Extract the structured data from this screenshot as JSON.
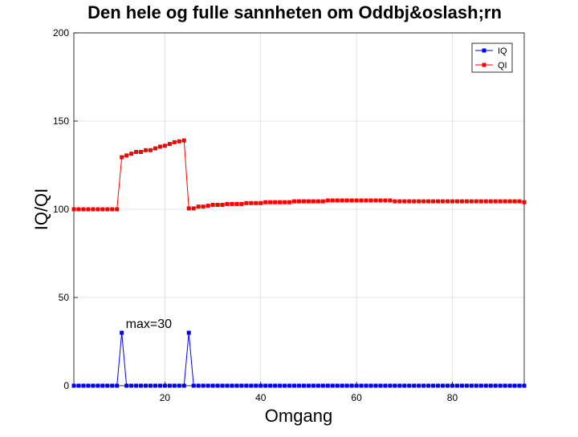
{
  "chart_data": {
    "type": "line",
    "title": "Den hele og fulle sannheten om Oddbj&oslash;rn",
    "xlabel": "Omgang",
    "ylabel": "IQ/QI",
    "xlim": [
      1,
      95
    ],
    "ylim": [
      0,
      200
    ],
    "xticks": [
      20,
      40,
      60,
      80
    ],
    "yticks": [
      0,
      50,
      100,
      150,
      200
    ],
    "grid": true,
    "legend_position": "top-right",
    "annotation": {
      "text": "max=30",
      "x": 12,
      "y": 35
    },
    "series": [
      {
        "name": "IQ",
        "color": "#0000ff",
        "marker": "square",
        "values": [
          0,
          0,
          0,
          0,
          0,
          0,
          0,
          0,
          0,
          0,
          30,
          0,
          0,
          0,
          0,
          0,
          0,
          0,
          0,
          0,
          0,
          0,
          0,
          0,
          30,
          0,
          0,
          0,
          0,
          0,
          0,
          0,
          0,
          0,
          0,
          0,
          0,
          0,
          0,
          0,
          0,
          0,
          0,
          0,
          0,
          0,
          0,
          0,
          0,
          0,
          0,
          0,
          0,
          0,
          0,
          0,
          0,
          0,
          0,
          0,
          0,
          0,
          0,
          0,
          0,
          0,
          0,
          0,
          0,
          0,
          0,
          0,
          0,
          0,
          0,
          0,
          0,
          0,
          0,
          0,
          0,
          0,
          0,
          0,
          0,
          0,
          0,
          0,
          0,
          0,
          0,
          0,
          0,
          0,
          0
        ]
      },
      {
        "name": "QI",
        "color": "#ff0000",
        "marker": "square",
        "values": [
          100,
          100,
          100,
          100,
          100,
          100,
          100,
          100,
          100,
          100,
          129.5,
          130.5,
          131.5,
          132.5,
          132.5,
          133.5,
          133.5,
          134.5,
          135.5,
          136,
          137,
          138,
          138.5,
          139,
          100.5,
          100.5,
          101.5,
          101.5,
          102,
          102.5,
          102.5,
          102.5,
          103,
          103,
          103,
          103,
          103.5,
          103.5,
          103.5,
          103.5,
          104,
          104,
          104,
          104,
          104,
          104,
          104.5,
          104.5,
          104.5,
          104.5,
          104.5,
          104.5,
          104.5,
          105,
          105,
          105,
          105,
          105,
          105,
          105,
          105,
          105,
          105,
          105,
          105,
          105,
          105,
          104.5,
          104.5,
          104.5,
          104.5,
          104.5,
          104.5,
          104.5,
          104.5,
          104.5,
          104.5,
          104.5,
          104.5,
          104.5,
          104.5,
          104.5,
          104.5,
          104.5,
          104.5,
          104.5,
          104.5,
          104.5,
          104.5,
          104.5,
          104.5,
          104.5,
          104.5,
          104.5,
          104
        ]
      }
    ]
  }
}
